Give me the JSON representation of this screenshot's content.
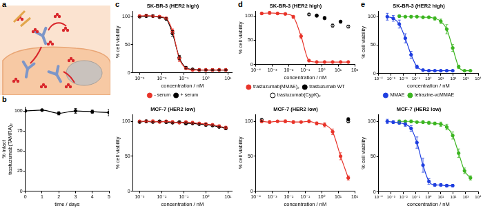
{
  "panel_labels": [
    "a",
    "b",
    "c",
    "d",
    "e"
  ],
  "chart_data": [
    {
      "type": "line",
      "y_label": [
        "% intact",
        "trastuzumab(TAMRA)₂"
      ],
      "x_label": "time / days",
      "xlim": [
        0,
        5
      ],
      "xticks": [
        0,
        1,
        2,
        3,
        4,
        5
      ],
      "ylim": [
        0,
        105
      ],
      "yticks": [
        0,
        25,
        50,
        75,
        100
      ],
      "grid": false,
      "series": [
        {
          "color": "#000000",
          "marker": "circle",
          "line_style": "solid",
          "x": [
            0,
            1,
            2,
            3,
            4,
            5
          ],
          "values": [
            100,
            101,
            97,
            100,
            99,
            98
          ],
          "errors": [
            0,
            1,
            2,
            3,
            2,
            4
          ]
        }
      ]
    },
    {
      "type": "line",
      "title": "SK-BR-3 (HER2 high)",
      "y_label": "% cell viability",
      "x_label": "concentration / nM",
      "log": "x",
      "xlim": [
        0.0005,
        15
      ],
      "xticks": [
        {
          "value": 0.001,
          "label": "10⁻³"
        },
        {
          "value": 0.01,
          "label": "10⁻²"
        },
        {
          "value": 0.1,
          "label": "10⁻¹"
        },
        {
          "value": 1,
          "label": "10⁰"
        },
        {
          "value": 10,
          "label": "10¹"
        }
      ],
      "ylim": [
        0,
        110
      ],
      "yticks": [
        0,
        50,
        100
      ],
      "grid": false,
      "legend": "bottom",
      "series": [
        {
          "name": "- serum",
          "color": "#e8342a",
          "marker": "circle",
          "line_style": "solid",
          "x": [
            0.001,
            0.002,
            0.004,
            0.008,
            0.016,
            0.031,
            0.063,
            0.125,
            0.25,
            0.5,
            1,
            2,
            4,
            8
          ],
          "values": [
            101,
            102,
            101,
            100,
            97,
            74,
            25,
            8,
            5,
            5,
            5,
            5,
            5,
            5
          ],
          "errors": [
            2,
            2,
            1,
            2,
            2,
            4,
            5,
            2,
            1,
            1,
            1,
            1,
            1,
            1
          ]
        },
        {
          "name": "+ serum",
          "color": "#000000",
          "marker": "circle",
          "line_style": "solid",
          "x": [
            0.001,
            0.002,
            0.004,
            0.008,
            0.016,
            0.031,
            0.063,
            0.125,
            0.25,
            0.5,
            1,
            2,
            4,
            8
          ],
          "values": [
            100,
            101,
            101,
            99,
            96,
            70,
            27,
            9,
            6,
            5,
            5,
            5,
            5,
            5
          ],
          "errors": [
            1,
            2,
            2,
            1,
            2,
            5,
            4,
            2,
            1,
            1,
            1,
            1,
            1,
            1
          ]
        }
      ]
    },
    {
      "type": "line",
      "title": "MCF-7 (HER2 low)",
      "y_label": "% cell viability",
      "x_label": "concentration / nM",
      "log": "x",
      "xlim": [
        0.0005,
        15
      ],
      "xticks": [
        {
          "value": 0.001,
          "label": "10⁻³"
        },
        {
          "value": 0.01,
          "label": "10⁻²"
        },
        {
          "value": 0.1,
          "label": "10⁻¹"
        },
        {
          "value": 1,
          "label": "10⁰"
        },
        {
          "value": 10,
          "label": "10¹"
        }
      ],
      "ylim": [
        0,
        110
      ],
      "yticks": [
        0,
        50,
        100
      ],
      "grid": false,
      "series": [
        {
          "color": "#e8342a",
          "marker": "circle",
          "line_style": "solid",
          "x": [
            0.001,
            0.002,
            0.004,
            0.008,
            0.016,
            0.031,
            0.063,
            0.125,
            0.25,
            0.5,
            1,
            2,
            4,
            8
          ],
          "values": [
            100,
            100,
            100,
            99,
            100,
            99,
            98,
            99,
            98,
            97,
            96,
            95,
            93,
            91
          ],
          "errors": [
            1,
            1,
            2,
            1,
            1,
            2,
            1,
            1,
            2,
            1,
            2,
            1,
            2,
            2
          ]
        },
        {
          "color": "#000000",
          "marker": "circle",
          "line_style": "solid",
          "x": [
            0.001,
            0.002,
            0.004,
            0.008,
            0.016,
            0.031,
            0.063,
            0.125,
            0.25,
            0.5,
            1,
            2,
            4,
            8
          ],
          "values": [
            99,
            100,
            99,
            100,
            99,
            98,
            99,
            97,
            97,
            96,
            95,
            94,
            92,
            90
          ],
          "errors": [
            1,
            2,
            1,
            1,
            2,
            1,
            1,
            2,
            1,
            1,
            2,
            1,
            1,
            2
          ]
        }
      ]
    },
    {
      "type": "line",
      "title": "SK-BR-3 (HER2 high)",
      "y_label": "% cell viability",
      "x_label": "concentration / nM",
      "log": "x",
      "xlim": [
        0.0001,
        100
      ],
      "xticks": [
        {
          "value": 0.0001,
          "label": "10⁻⁴"
        },
        {
          "value": 0.001,
          "label": "10⁻³"
        },
        {
          "value": 0.01,
          "label": "10⁻²"
        },
        {
          "value": 0.1,
          "label": "10⁻¹"
        },
        {
          "value": 1,
          "label": "10⁰"
        },
        {
          "value": 10,
          "label": "10¹"
        },
        {
          "value": 100,
          "label": "10²"
        }
      ],
      "ylim": [
        0,
        110
      ],
      "yticks": [
        0,
        50,
        100
      ],
      "grid": false,
      "legend": "bottom",
      "series": [
        {
          "name": "trastuzumab(MMAE)₂",
          "color": "#e8342a",
          "marker": "circle",
          "line_style": "solid",
          "x": [
            0.00023,
            0.00069,
            0.0021,
            0.0062,
            0.019,
            0.056,
            0.17,
            0.5,
            1.5,
            4.6,
            14,
            41
          ],
          "values": [
            105,
            106,
            105,
            104,
            98,
            58,
            8,
            5,
            5,
            5,
            5,
            5
          ],
          "errors": [
            2,
            3,
            2,
            2,
            3,
            5,
            2,
            1,
            1,
            1,
            1,
            1
          ]
        },
        {
          "name": "trastuzumab WT",
          "type": "scatter",
          "color": "#000000",
          "marker": "circle",
          "line_style": "none",
          "x": [
            0.5,
            1.5,
            14
          ],
          "values": [
            101,
            96,
            88
          ],
          "errors": [
            2,
            2,
            3
          ]
        },
        {
          "name": "trastuzumab(CypK)₂",
          "type": "scatter",
          "color": "#000000",
          "marker": "open_circle",
          "line_style": "none",
          "x": [
            0.17,
            0.5,
            1.5,
            4.6,
            41
          ],
          "values": [
            103,
            100,
            95,
            80,
            78
          ],
          "errors": [
            2,
            2,
            2,
            3,
            3
          ]
        }
      ]
    },
    {
      "type": "line",
      "title": "MCF-7 (HER2 low)",
      "y_label": "% cell viability",
      "x_label": "concentration / nM",
      "log": "x",
      "xlim": [
        0.0001,
        100
      ],
      "xticks": [
        {
          "value": 0.0001,
          "label": "10⁻⁴"
        },
        {
          "value": 0.001,
          "label": "10⁻³"
        },
        {
          "value": 0.01,
          "label": "10⁻²"
        },
        {
          "value": 0.1,
          "label": "10⁻¹"
        },
        {
          "value": 1,
          "label": "10⁰"
        },
        {
          "value": 10,
          "label": "10¹"
        },
        {
          "value": 100,
          "label": "10²"
        }
      ],
      "ylim": [
        0,
        110
      ],
      "yticks": [
        0,
        50,
        100
      ],
      "grid": false,
      "series": [
        {
          "color": "#e8342a",
          "marker": "circle",
          "line_style": "solid",
          "x": [
            0.00023,
            0.00069,
            0.0021,
            0.0062,
            0.019,
            0.056,
            0.17,
            0.5,
            1.5,
            4.6,
            14,
            41
          ],
          "values": [
            100,
            99,
            100,
            100,
            99,
            99,
            100,
            97,
            95,
            85,
            50,
            19
          ],
          "errors": [
            2,
            2,
            1,
            2,
            2,
            1,
            2,
            2,
            3,
            4,
            5,
            3
          ]
        },
        {
          "type": "scatter",
          "color": "#000000",
          "marker": "circle",
          "line_style": "none",
          "x": [
            41
          ],
          "values": [
            103
          ],
          "errors": [
            2
          ]
        },
        {
          "type": "scatter",
          "color": "#000000",
          "marker": "open_circle",
          "line_style": "none",
          "x": [
            0.00023,
            41
          ],
          "values": [
            102,
            100
          ],
          "errors": [
            2,
            2
          ]
        }
      ]
    },
    {
      "type": "line",
      "title": "SK-BR-3 (HER2 high)",
      "y_label": "% cell viability",
      "x_label": "concentration / nM",
      "log": "x",
      "xlim": [
        0.0001,
        10000
      ],
      "xticks": [
        {
          "value": 0.0001,
          "label": "10⁻⁴"
        },
        {
          "value": 0.001,
          "label": "10⁻³"
        },
        {
          "value": 0.01,
          "label": "10⁻²"
        },
        {
          "value": 0.1,
          "label": "10⁻¹"
        },
        {
          "value": 1,
          "label": "10⁰"
        },
        {
          "value": 10,
          "label": "10¹"
        },
        {
          "value": 100,
          "label": "10²"
        },
        {
          "value": 1000,
          "label": "10³"
        },
        {
          "value": 10000,
          "label": "10⁴"
        }
      ],
      "ylim": [
        0,
        110
      ],
      "yticks": [
        0,
        50,
        100
      ],
      "grid": false,
      "legend": "bottom",
      "series": [
        {
          "name": "MMAE",
          "color": "#1f3fe0",
          "marker": "circle",
          "line_style": "solid",
          "x": [
            0.0005,
            0.0015,
            0.0046,
            0.014,
            0.041,
            0.12,
            0.37,
            1.1,
            3.3,
            10,
            30,
            90
          ],
          "values": [
            100,
            97,
            87,
            62,
            33,
            12,
            6,
            5,
            5,
            5,
            5,
            5
          ],
          "errors": [
            6,
            5,
            7,
            8,
            6,
            3,
            2,
            1,
            1,
            1,
            1,
            1
          ]
        },
        {
          "name": "tetrazine-vcMMAE",
          "color": "#3cb521",
          "marker": "circle",
          "line_style": "solid",
          "x": [
            0.0046,
            0.014,
            0.041,
            0.12,
            0.37,
            1.1,
            3.3,
            10,
            30,
            90,
            270,
            800,
            2400
          ],
          "values": [
            101,
            100,
            100,
            100,
            99,
            99,
            97,
            92,
            78,
            45,
            12,
            5,
            5
          ],
          "errors": [
            2,
            1,
            2,
            1,
            2,
            2,
            3,
            4,
            8,
            6,
            3,
            1,
            1
          ]
        }
      ]
    },
    {
      "type": "line",
      "title": "MCF-7 (HER2 low)",
      "y_label": "% cell viability",
      "x_label": "concentration / nM",
      "log": "x",
      "xlim": [
        0.0001,
        10000
      ],
      "xticks": [
        {
          "value": 0.0001,
          "label": "10⁻⁴"
        },
        {
          "value": 0.001,
          "label": "10⁻³"
        },
        {
          "value": 0.01,
          "label": "10⁻²"
        },
        {
          "value": 0.1,
          "label": "10⁻¹"
        },
        {
          "value": 1,
          "label": "10⁰"
        },
        {
          "value": 10,
          "label": "10¹"
        },
        {
          "value": 100,
          "label": "10²"
        },
        {
          "value": 1000,
          "label": "10³"
        },
        {
          "value": 10000,
          "label": "10⁴"
        }
      ],
      "ylim": [
        0,
        110
      ],
      "yticks": [
        0,
        50,
        100
      ],
      "grid": false,
      "series": [
        {
          "color": "#1f3fe0",
          "marker": "circle",
          "line_style": "solid",
          "x": [
            0.0005,
            0.0015,
            0.0046,
            0.014,
            0.041,
            0.12,
            0.37,
            1.1,
            3.3,
            10,
            30,
            90
          ],
          "values": [
            100,
            99,
            98,
            96,
            90,
            70,
            38,
            15,
            10,
            10,
            9,
            9
          ],
          "errors": [
            3,
            2,
            2,
            3,
            4,
            8,
            10,
            4,
            2,
            2,
            2,
            2
          ]
        },
        {
          "color": "#3cb521",
          "marker": "circle",
          "line_style": "solid",
          "x": [
            0.0046,
            0.014,
            0.041,
            0.12,
            0.37,
            1.1,
            3.3,
            10,
            30,
            90,
            270,
            800,
            2400
          ],
          "values": [
            100,
            100,
            100,
            99,
            99,
            98,
            97,
            96,
            92,
            80,
            55,
            30,
            20
          ],
          "errors": [
            2,
            1,
            2,
            1,
            2,
            2,
            2,
            3,
            4,
            5,
            6,
            4,
            3
          ]
        }
      ]
    }
  ]
}
